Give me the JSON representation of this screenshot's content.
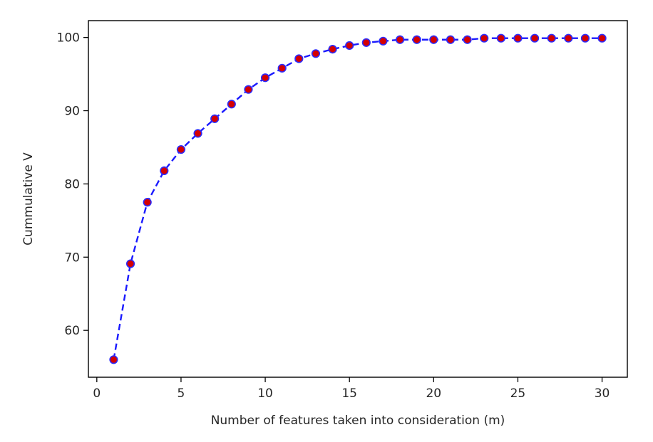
{
  "chart_data": {
    "type": "line",
    "title": "",
    "xlabel": "Number of features taken into consideration (m)",
    "ylabel": "Cummulative V",
    "xlim": [
      -0.5,
      31.5
    ],
    "ylim": [
      53.6,
      102.3
    ],
    "xticks": [
      0,
      5,
      10,
      15,
      20,
      25,
      30
    ],
    "yticks": [
      60,
      70,
      80,
      90,
      100
    ],
    "grid": false,
    "legend": "none",
    "series": [
      {
        "line_color": "#1a1aff",
        "line_style": "dashed",
        "marker_fill": "#d40000",
        "marker_edge": "#2b2bff",
        "x": [
          1,
          2,
          3,
          4,
          5,
          6,
          7,
          8,
          9,
          10,
          11,
          12,
          13,
          14,
          15,
          16,
          17,
          18,
          19,
          20,
          21,
          22,
          23,
          24,
          25,
          26,
          27,
          28,
          29,
          30
        ],
        "y": [
          56.0,
          69.1,
          77.5,
          81.8,
          84.7,
          86.9,
          88.9,
          90.9,
          92.9,
          94.5,
          95.8,
          97.1,
          97.8,
          98.4,
          98.9,
          99.3,
          99.5,
          99.7,
          99.7,
          99.7,
          99.7,
          99.7,
          99.9,
          99.9,
          99.9,
          99.9,
          99.9,
          99.9,
          99.9,
          99.9
        ]
      }
    ]
  }
}
